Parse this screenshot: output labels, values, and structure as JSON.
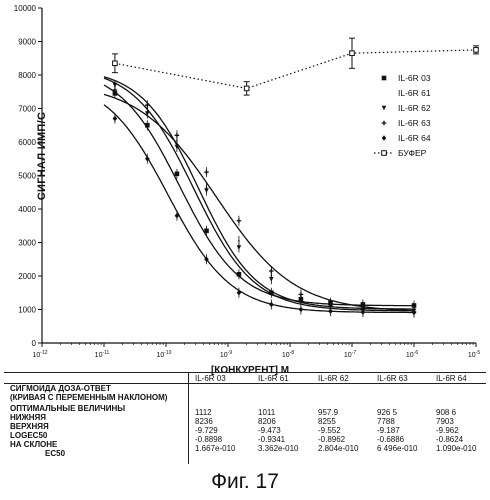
{
  "chart_data": {
    "type": "scatter",
    "title": "",
    "xlabel": "[КОНКУРЕНТ] М",
    "ylabel": "СИГНАЛ ИМП/С",
    "x_scale": "log",
    "xlim": [
      1e-12,
      1e-05
    ],
    "ylim": [
      0,
      10000
    ],
    "x_ticks": [
      "10-12",
      "10-11",
      "10-10",
      "10-9",
      "10-8",
      "10-7",
      "10-6",
      "10-5"
    ],
    "y_ticks": [
      "0",
      "1000",
      "2000",
      "3000",
      "4000",
      "5000",
      "6000",
      "7000",
      "8000",
      "9000",
      "10000"
    ],
    "legend_placement": "right",
    "series": [
      {
        "name": "IL-6R 03",
        "marker": "square",
        "bottom": 1112,
        "top": 8236,
        "ec50": 1.667e-10,
        "hill": -0.8898,
        "x": [
          1.5e-11,
          5e-11,
          1.5e-10,
          4.5e-10,
          1.5e-09,
          5e-09,
          1.5e-08,
          4.5e-08,
          1.5e-07,
          1e-06
        ],
        "y": [
          7450,
          6500,
          5050,
          3350,
          2050,
          1500,
          1300,
          1200,
          1150,
          1120
        ]
      },
      {
        "name": "IL-6R 61",
        "marker": "none",
        "bottom": 1011,
        "top": 8206,
        "ec50": 3.362e-10,
        "hill": -0.9341,
        "x": [
          1.5e-11,
          5e-11,
          1.5e-10,
          4.5e-10,
          1.5e-09,
          5e-09,
          1.5e-08,
          4.5e-08,
          1.5e-07,
          1e-06
        ],
        "y": [
          7650,
          7000,
          6050,
          4650,
          3050,
          2000,
          1400,
          1150,
          1050,
          1020
        ]
      },
      {
        "name": "IL-6R 62",
        "marker": "triangle-down",
        "bottom": 957.9,
        "top": 8255,
        "ec50": 2.804e-10,
        "hill": -0.8962,
        "x": [
          1.5e-11,
          5e-11,
          1.5e-10,
          4.5e-10,
          1.5e-09,
          5e-09,
          1.5e-08,
          4.5e-08,
          1.5e-07,
          1e-06
        ],
        "y": [
          7700,
          6850,
          5850,
          4550,
          2850,
          1900,
          1300,
          1100,
          1000,
          960
        ]
      },
      {
        "name": "IL-6R 63",
        "marker": "plus",
        "bottom": 926.5,
        "top": 7788,
        "ec50": 6.496e-10,
        "hill": -0.6886,
        "x": [
          1.5e-11,
          5e-11,
          1.5e-10,
          4.5e-10,
          1.5e-09,
          5e-09,
          1.5e-08,
          4.5e-08,
          1.5e-07,
          1e-06
        ],
        "y": [
          7550,
          7100,
          6200,
          5100,
          3650,
          2150,
          1450,
          1100,
          1000,
          930
        ]
      },
      {
        "name": "IL-6R 64",
        "marker": "diamond",
        "bottom": 908.6,
        "top": 7903,
        "ec50": 1.09e-10,
        "hill": -0.8624,
        "x": [
          1.5e-11,
          5e-11,
          1.5e-10,
          4.5e-10,
          1.5e-09,
          5e-09,
          1.5e-08,
          4.5e-08,
          1.5e-07,
          1e-06
        ],
        "y": [
          6700,
          5500,
          3800,
          2500,
          1500,
          1150,
          1000,
          950,
          920,
          910
        ]
      },
      {
        "name": "БУФЕР",
        "marker": "open-square",
        "line": "dotted",
        "x": [
          1.5e-11,
          2e-09,
          1e-07,
          1e-05
        ],
        "y": [
          8350,
          7600,
          8650,
          8750
        ],
        "err": [
          280,
          200,
          450,
          120
        ]
      }
    ]
  },
  "results_table": {
    "row_labels": [
      "СИГМОИДА ДОЗА-ОТВЕТ",
      "(КРИВАЯ С ПЕРЕМЕННЫМ НАКЛОНОМ)",
      "ОПТИМАЛЬНЫЕ ВЕЛИЧИНЫ",
      "НИЖНЯЯ",
      "ВЕРХНЯЯ",
      "LOGEC50",
      "НА СКЛОНЕ",
      "EC50"
    ],
    "columns": [
      {
        "header": "IL-6R 03",
        "values": [
          "1112",
          "8236",
          "-9.729",
          "-0.8898",
          "1.667e-010"
        ]
      },
      {
        "header": "IL-6R 61",
        "values": [
          "1011",
          "8206",
          "-9.473",
          "-0.9341",
          "3.362e-010"
        ]
      },
      {
        "header": "IL-6R 62",
        "values": [
          "957.9",
          "8255",
          "-9.552",
          "-0.8962",
          "2.804e-010"
        ]
      },
      {
        "header": "IL-6R 63",
        "values": [
          "926 5",
          "7788",
          "-9.187",
          "-0.6886",
          "6 496e-010"
        ]
      },
      {
        "header": "IL-6R 64",
        "values": [
          "908 6",
          "7903",
          "-9.962",
          "-0.8624",
          "1.090e-010"
        ]
      }
    ]
  },
  "figure_caption": "Фиг. 17"
}
